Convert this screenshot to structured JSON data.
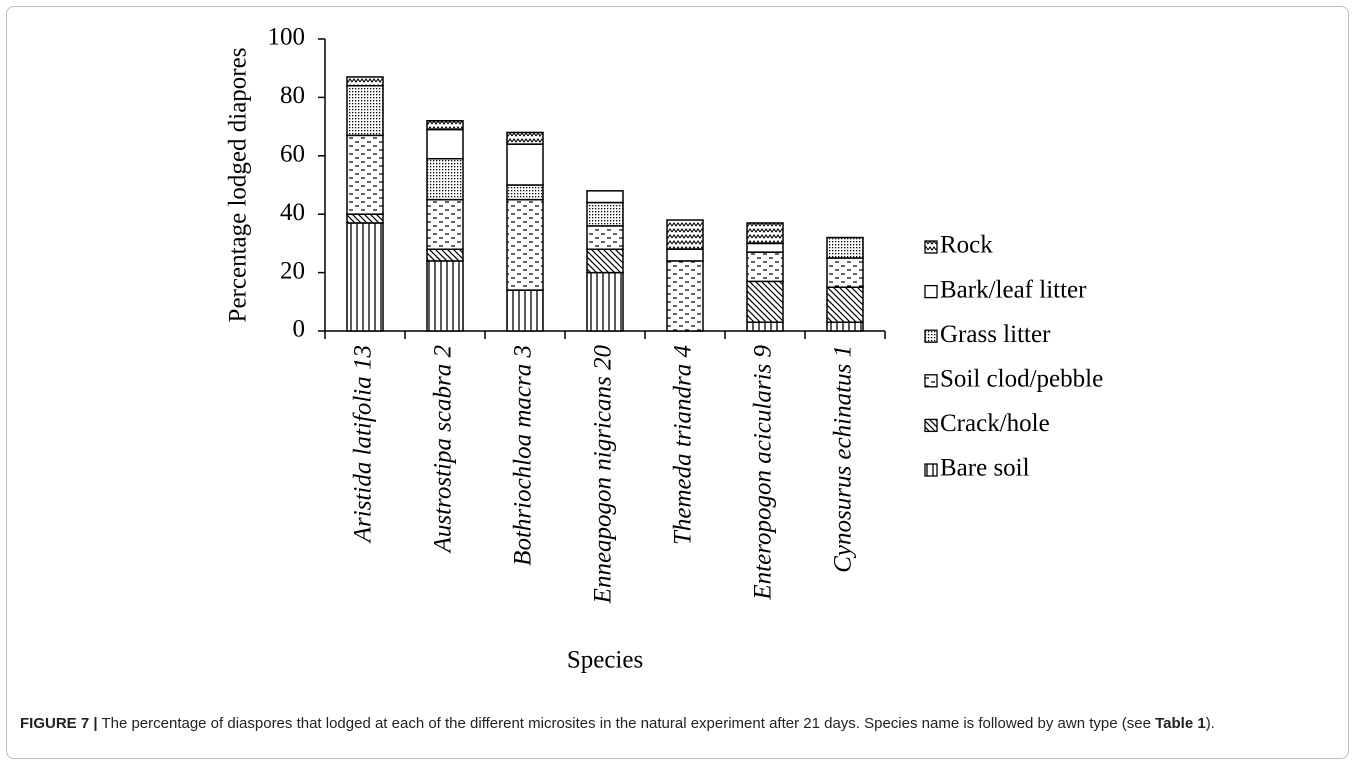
{
  "chart_data": {
    "type": "stacked-bar",
    "y_label": "Percentage lodged diapores",
    "x_label": "Species",
    "categories": [
      "Aristida latifolia 13",
      "Austrostipa scabra 2",
      "Bothriochloa macra 3",
      "Enneapogon nigricans 20",
      "Themeda triandra 4",
      "Enteropogon acicularis 9",
      "Cynosurus echinatus 1"
    ],
    "series": [
      {
        "name": "Bare soil",
        "color": "#000000",
        "values": [
          37,
          24,
          14,
          20,
          0,
          3,
          3
        ]
      },
      {
        "name": "Crack/hole",
        "color": "#000000",
        "values": [
          3,
          4,
          0,
          8,
          0,
          14,
          12
        ]
      },
      {
        "name": "Soil clod/pebble",
        "color": "#000000",
        "values": [
          27,
          17,
          31,
          8,
          24,
          10,
          10
        ]
      },
      {
        "name": "Grass litter",
        "color": "#000000",
        "values": [
          17,
          14,
          5,
          8,
          0,
          0,
          7
        ]
      },
      {
        "name": "Bark/leaf litter",
        "color": "#000000",
        "values": [
          0,
          10,
          14,
          4,
          4,
          3,
          0
        ]
      },
      {
        "name": "Rock",
        "color": "#000000",
        "values": [
          3,
          3,
          4,
          0,
          10,
          7,
          0
        ]
      }
    ],
    "ylim": [
      0,
      100
    ],
    "yticks": [
      0,
      20,
      40,
      60,
      80,
      100
    ],
    "grid": false,
    "legend": "right"
  },
  "caption": {
    "label": "FIGURE 7 |",
    "text": " The percentage of diaspores that lodged at each of the different microsites in the natural experiment after 21 days. Species name is followed by awn type (see ",
    "ref": "Table 1",
    "end": ")."
  }
}
